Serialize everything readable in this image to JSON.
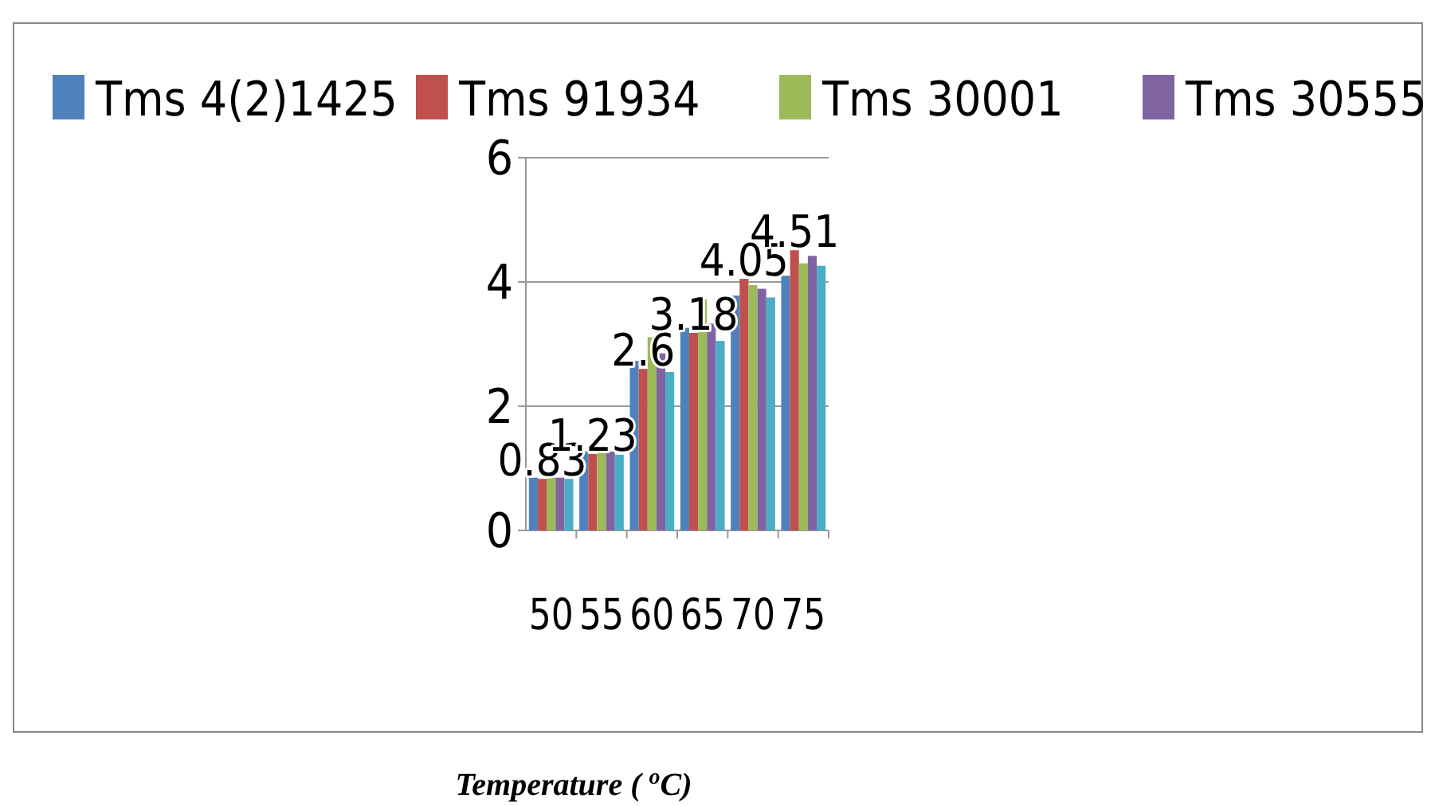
{
  "chart_data": {
    "type": "bar",
    "xlabel": "Temperature ( $^{o}$C)",
    "categories": [
      "50",
      "55",
      "60",
      "65",
      "70",
      "75"
    ],
    "series": [
      {
        "name": "Tms 4(2)1425",
        "color": "#4f81bd",
        "values": [
          0.85,
          1.28,
          2.73,
          3.26,
          3.78,
          4.1
        ]
      },
      {
        "name": "Tms 91934",
        "color": "#c0504d",
        "values": [
          0.83,
          1.23,
          2.6,
          3.18,
          4.05,
          4.51
        ],
        "value_labels": [
          "0.83",
          "1.23",
          "2.6",
          "3.18",
          "4.05",
          "4.51"
        ]
      },
      {
        "name": "Tms 30001",
        "color": "#9bbb59",
        "values": [
          0.85,
          1.25,
          3.11,
          3.72,
          3.95,
          4.3
        ]
      },
      {
        "name": "Tms 30555",
        "color": "#8064a2",
        "values": [
          0.85,
          1.27,
          2.85,
          3.33,
          3.89,
          4.42
        ]
      },
      {
        "color": "#4bacc6",
        "values": [
          0.83,
          1.22,
          2.55,
          3.05,
          3.75,
          4.26
        ]
      }
    ],
    "ylim": [
      0,
      6
    ],
    "yticks": [
      0,
      2,
      4,
      6
    ],
    "grid": "y",
    "legend": "top"
  }
}
